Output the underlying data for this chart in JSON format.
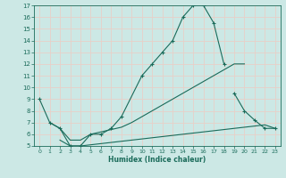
{
  "xlabel": "Humidex (Indice chaleur)",
  "bg_color": "#cce8e5",
  "grid_color": "#e8d0c8",
  "line_color": "#1a6b5a",
  "xlim": [
    -0.5,
    23.5
  ],
  "ylim": [
    5,
    17
  ],
  "xticks": [
    0,
    1,
    2,
    3,
    4,
    5,
    6,
    7,
    8,
    9,
    10,
    11,
    12,
    13,
    14,
    15,
    16,
    17,
    18,
    19,
    20,
    21,
    22,
    23
  ],
  "yticks": [
    5,
    6,
    7,
    8,
    9,
    10,
    11,
    12,
    13,
    14,
    15,
    16,
    17
  ],
  "lines": [
    {
      "x": [
        0,
        1,
        2,
        3,
        4,
        5,
        6,
        7,
        8,
        10,
        11,
        12,
        13,
        14,
        15,
        16,
        17,
        18
      ],
      "y": [
        9,
        7,
        6.5,
        5,
        5,
        6,
        6,
        6.5,
        7.5,
        11,
        12,
        13,
        14,
        16,
        17,
        17,
        15.5,
        12
      ],
      "marker": "+"
    },
    {
      "x": [
        19,
        20,
        21,
        22,
        23
      ],
      "y": [
        9.5,
        8,
        7.2,
        6.5,
        6.5
      ],
      "marker": "+"
    },
    {
      "x": [
        1,
        2,
        3,
        4,
        5,
        6,
        7,
        8,
        9,
        10,
        11,
        12,
        13,
        14,
        15,
        16,
        17,
        18,
        19,
        20
      ],
      "y": [
        7,
        6.5,
        5.5,
        5.5,
        6,
        6.2,
        6.4,
        6.6,
        7,
        7.5,
        8,
        8.5,
        9,
        9.5,
        10,
        10.5,
        11,
        11.5,
        12,
        12
      ],
      "marker": null
    },
    {
      "x": [
        2,
        3,
        4,
        5,
        6,
        7,
        8,
        9,
        10,
        11,
        12,
        13,
        14,
        15,
        16,
        17,
        18,
        19,
        20,
        21,
        22,
        23
      ],
      "y": [
        5.5,
        5,
        5,
        5.1,
        5.2,
        5.3,
        5.4,
        5.5,
        5.6,
        5.7,
        5.8,
        5.9,
        6.0,
        6.1,
        6.2,
        6.3,
        6.4,
        6.5,
        6.6,
        6.7,
        6.8,
        6.5
      ],
      "marker": null
    }
  ]
}
